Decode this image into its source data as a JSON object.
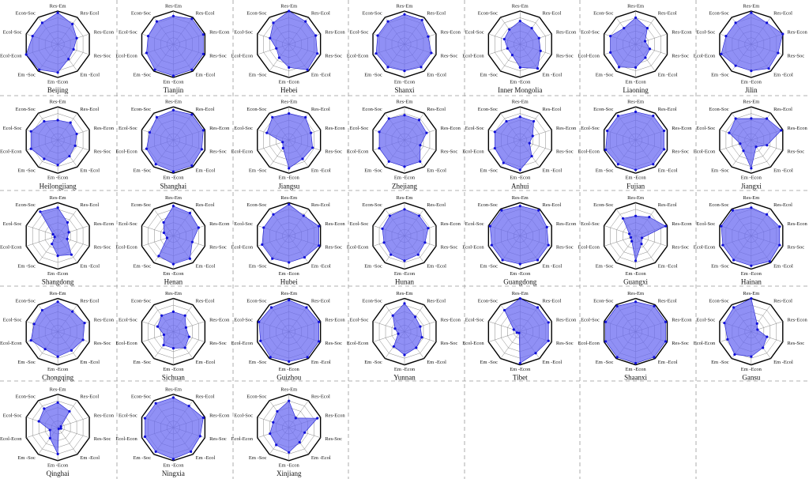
{
  "chart_data": [
    {
      "type": "radar",
      "title": "Beijing",
      "categories": [
        "Res-Em",
        "Res-Ecol",
        "Res-Econ",
        "Res-Soc",
        "Em -Ecol",
        "Em -Econ",
        "Em -Soc",
        "Ecol-Econ",
        "Ecol-Soc",
        "Econ-Soc"
      ],
      "values": [
        0.95,
        0.75,
        0.6,
        0.5,
        0.55,
        0.85,
        0.95,
        1.0,
        0.8,
        0.8
      ],
      "color": "#6b6bf2",
      "ylim": [
        0,
        1
      ],
      "yticks": [
        0.2,
        0.4,
        0.6,
        0.8,
        1.0
      ]
    },
    {
      "type": "radar",
      "title": "Tianjin",
      "categories": [
        "Res-Em",
        "Res-Ecol",
        "Res-Econ",
        "Res-Soc",
        "Em -Ecol",
        "Em -Econ",
        "Em -Soc",
        "Ecol-Econ",
        "Ecol-Soc",
        "Econ-Soc"
      ],
      "values": [
        0.85,
        0.95,
        0.95,
        0.95,
        0.95,
        0.95,
        0.95,
        0.85,
        0.8,
        0.85
      ],
      "color": "#6b6bf2",
      "ylim": [
        0,
        1
      ],
      "yticks": [
        0.2,
        0.4,
        0.6,
        0.8,
        1.0
      ]
    },
    {
      "type": "radar",
      "title": "Hebei",
      "categories": [
        "Res-Em",
        "Res-Ecol",
        "Res-Econ",
        "Res-Soc",
        "Em -Ecol",
        "Em -Econ",
        "Em -Soc",
        "Ecol-Econ",
        "Ecol-Soc",
        "Econ-Soc"
      ],
      "values": [
        1.0,
        0.85,
        0.85,
        0.9,
        0.95,
        0.7,
        0.5,
        0.4,
        0.6,
        0.8
      ],
      "color": "#6b6bf2",
      "ylim": [
        0,
        1
      ],
      "yticks": [
        0.2,
        0.4,
        0.6,
        0.8,
        1.0
      ]
    },
    {
      "type": "radar",
      "title": "Shanxi",
      "categories": [
        "Res-Em",
        "Res-Ecol",
        "Res-Econ",
        "Res-Soc",
        "Em -Ecol",
        "Em -Econ",
        "Em -Soc",
        "Ecol-Econ",
        "Ecol-Soc",
        "Econ-Soc"
      ],
      "values": [
        0.9,
        0.9,
        0.75,
        0.85,
        0.85,
        0.8,
        0.85,
        0.9,
        0.85,
        0.85
      ],
      "color": "#6b6bf2",
      "ylim": [
        0,
        1
      ],
      "yticks": [
        0.2,
        0.4,
        0.6,
        0.8,
        1.0
      ]
    },
    {
      "type": "radar",
      "title": "Inner Mongolia",
      "categories": [
        "Res-Em",
        "Res-Ecol",
        "Res-Econ",
        "Res-Soc",
        "Em -Ecol",
        "Em -Econ",
        "Em -Soc",
        "Ecol-Econ",
        "Ecol-Soc",
        "Econ-Soc"
      ],
      "values": [
        0.7,
        0.6,
        0.6,
        0.65,
        0.9,
        0.7,
        0.4,
        0.4,
        0.5,
        0.55
      ],
      "color": "#6b6bf2",
      "ylim": [
        0,
        1
      ],
      "yticks": [
        0.2,
        0.4,
        0.6,
        0.8,
        1.0
      ]
    },
    {
      "type": "radar",
      "title": "Liaoning",
      "categories": [
        "Res-Em",
        "Res-Ecol",
        "Res-Econ",
        "Res-Soc",
        "Em -Ecol",
        "Em -Econ",
        "Em -Soc",
        "Ecol-Econ",
        "Ecol-Soc",
        "Econ-Soc"
      ],
      "values": [
        0.8,
        0.6,
        0.3,
        0.45,
        0.5,
        0.7,
        0.85,
        0.8,
        0.8,
        0.6
      ],
      "color": "#6b6bf2",
      "ylim": [
        0,
        1
      ],
      "yticks": [
        0.2,
        0.4,
        0.6,
        0.8,
        1.0
      ]
    },
    {
      "type": "radar",
      "title": "Jilin",
      "categories": [
        "Res-Em",
        "Res-Ecol",
        "Res-Econ",
        "Res-Soc",
        "Em -Ecol",
        "Em -Econ",
        "Em -Soc",
        "Ecol-Econ",
        "Ecol-Soc",
        "Econ-Soc"
      ],
      "values": [
        0.95,
        0.8,
        1.0,
        0.85,
        0.9,
        0.8,
        0.8,
        0.95,
        0.8,
        0.8
      ],
      "color": "#6b6bf2",
      "ylim": [
        0,
        1
      ],
      "yticks": [
        0.2,
        0.4,
        0.6,
        0.8,
        1.0
      ]
    },
    {
      "type": "radar",
      "title": "Heilongjiang",
      "categories": [
        "Res-Em",
        "Res-Ecol",
        "Res-Econ",
        "Res-Soc",
        "Em -Ecol",
        "Em -Econ",
        "Em -Soc",
        "Ecol-Econ",
        "Ecol-Soc",
        "Econ-Soc"
      ],
      "values": [
        0.6,
        0.65,
        0.6,
        0.55,
        0.6,
        0.75,
        0.7,
        0.85,
        0.85,
        0.7
      ],
      "color": "#6b6bf2",
      "ylim": [
        0,
        1
      ],
      "yticks": [
        0.2,
        0.4,
        0.6,
        0.8,
        1.0
      ]
    },
    {
      "type": "radar",
      "title": "Shanghai",
      "categories": [
        "Res-Em",
        "Res-Ecol",
        "Res-Econ",
        "Res-Soc",
        "Em -Ecol",
        "Em -Econ",
        "Em -Soc",
        "Ecol-Econ",
        "Ecol-Soc",
        "Econ-Soc"
      ],
      "values": [
        0.9,
        0.95,
        0.95,
        0.9,
        0.95,
        0.95,
        0.9,
        0.85,
        0.75,
        0.85
      ],
      "color": "#6b6bf2",
      "ylim": [
        0,
        1
      ],
      "yticks": [
        0.2,
        0.4,
        0.6,
        0.8,
        1.0
      ]
    },
    {
      "type": "radar",
      "title": "Jiangsu",
      "categories": [
        "Res-Em",
        "Res-Ecol",
        "Res-Econ",
        "Res-Soc",
        "Em -Ecol",
        "Em -Econ",
        "Em -Soc",
        "Ecol-Econ",
        "Ecol-Soc",
        "Econ-Soc"
      ],
      "values": [
        0.8,
        0.85,
        0.7,
        0.75,
        0.7,
        0.85,
        0.3,
        0.2,
        0.7,
        0.85
      ],
      "color": "#6b6bf2",
      "ylim": [
        0,
        1
      ],
      "yticks": [
        0.2,
        0.4,
        0.6,
        0.8,
        1.0
      ]
    },
    {
      "type": "radar",
      "title": "Zhejiang",
      "categories": [
        "Res-Em",
        "Res-Ecol",
        "Res-Econ",
        "Res-Soc",
        "Em -Ecol",
        "Em -Econ",
        "Em -Soc",
        "Ecol-Econ",
        "Ecol-Soc",
        "Econ-Soc"
      ],
      "values": [
        0.75,
        0.75,
        0.7,
        0.5,
        0.8,
        0.8,
        0.8,
        0.8,
        0.8,
        0.8
      ],
      "color": "#6b6bf2",
      "ylim": [
        0,
        1
      ],
      "yticks": [
        0.2,
        0.4,
        0.6,
        0.8,
        1.0
      ]
    },
    {
      "type": "radar",
      "title": "Anhui",
      "categories": [
        "Res-Em",
        "Res-Ecol",
        "Res-Econ",
        "Res-Soc",
        "Em -Ecol",
        "Em -Econ",
        "Em -Soc",
        "Ecol-Econ",
        "Ecol-Soc",
        "Econ-Soc"
      ],
      "values": [
        0.7,
        0.7,
        0.4,
        0.3,
        0.6,
        0.9,
        0.85,
        0.8,
        0.8,
        0.7
      ],
      "color": "#6b6bf2",
      "ylim": [
        0,
        1
      ],
      "yticks": [
        0.2,
        0.4,
        0.6,
        0.8,
        1.0
      ]
    },
    {
      "type": "radar",
      "title": "Fujian",
      "categories": [
        "Res-Em",
        "Res-Ecol",
        "Res-Econ",
        "Res-Soc",
        "Em -Ecol",
        "Em -Econ",
        "Em -Soc",
        "Ecol-Econ",
        "Ecol-Soc",
        "Econ-Soc"
      ],
      "values": [
        0.85,
        0.9,
        0.9,
        0.9,
        0.9,
        0.9,
        0.9,
        0.95,
        0.9,
        0.9
      ],
      "color": "#6b6bf2",
      "ylim": [
        0,
        1
      ],
      "yticks": [
        0.2,
        0.4,
        0.6,
        0.8,
        1.0
      ]
    },
    {
      "type": "radar",
      "title": "Jiangxi",
      "categories": [
        "Res-Em",
        "Res-Ecol",
        "Res-Econ",
        "Res-Soc",
        "Em -Ecol",
        "Em -Econ",
        "Em -Soc",
        "Ecol-Econ",
        "Ecol-Soc",
        "Econ-Soc"
      ],
      "values": [
        0.65,
        0.8,
        0.95,
        0.5,
        0.25,
        0.85,
        0.4,
        0.35,
        0.7,
        0.8
      ],
      "color": "#6b6bf2",
      "ylim": [
        0,
        1
      ],
      "yticks": [
        0.2,
        0.4,
        0.6,
        0.8,
        1.0
      ]
    },
    {
      "type": "radar",
      "title": "Shangdong",
      "categories": [
        "Res-Em",
        "Res-Ecol",
        "Res-Econ",
        "Res-Soc",
        "Em -Ecol",
        "Em -Econ",
        "Em -Soc",
        "Ecol-Econ",
        "Ecol-Soc",
        "Econ-Soc"
      ],
      "values": [
        0.85,
        0.5,
        0.35,
        0.3,
        0.7,
        0.6,
        0.3,
        0.1,
        0.15,
        0.9
      ],
      "color": "#6b6bf2",
      "ylim": [
        0,
        1
      ],
      "yticks": [
        0.2,
        0.4,
        0.6,
        0.8,
        1.0
      ]
    },
    {
      "type": "radar",
      "title": "Henan",
      "categories": [
        "Res-Em",
        "Res-Ecol",
        "Res-Econ",
        "Res-Soc",
        "Em -Ecol",
        "Em -Econ",
        "Em -Soc",
        "Ecol-Econ",
        "Ecol-Soc",
        "Econ-Soc"
      ],
      "values": [
        0.9,
        0.85,
        0.8,
        0.6,
        0.85,
        0.85,
        0.75,
        0.2,
        0.3,
        0.5
      ],
      "color": "#6b6bf2",
      "ylim": [
        0,
        1
      ],
      "yticks": [
        0.2,
        0.4,
        0.6,
        0.8,
        1.0
      ]
    },
    {
      "type": "radar",
      "title": "Hubei",
      "categories": [
        "Res-Em",
        "Res-Ecol",
        "Res-Econ",
        "Res-Soc",
        "Em -Ecol",
        "Em -Econ",
        "Em -Soc",
        "Ecol-Econ",
        "Ecol-Soc",
        "Econ-Soc"
      ],
      "values": [
        0.95,
        0.75,
        0.95,
        0.95,
        0.8,
        0.8,
        0.85,
        0.85,
        0.8,
        0.8
      ],
      "color": "#6b6bf2",
      "ylim": [
        0,
        1
      ],
      "yticks": [
        0.2,
        0.4,
        0.6,
        0.8,
        1.0
      ]
    },
    {
      "type": "radar",
      "title": "Hunan",
      "categories": [
        "Res-Em",
        "Res-Ecol",
        "Res-Econ",
        "Res-Soc",
        "Em -Ecol",
        "Em -Econ",
        "Em -Soc",
        "Ecol-Econ",
        "Ecol-Soc",
        "Econ-Soc"
      ],
      "values": [
        0.8,
        0.75,
        0.75,
        0.65,
        0.7,
        0.75,
        0.7,
        0.65,
        0.7,
        0.75
      ],
      "color": "#6b6bf2",
      "ylim": [
        0,
        1
      ],
      "yticks": [
        0.2,
        0.4,
        0.6,
        0.8,
        1.0
      ]
    },
    {
      "type": "radar",
      "title": "Guangdong",
      "categories": [
        "Res-Em",
        "Res-Ecol",
        "Res-Econ",
        "Res-Soc",
        "Em -Ecol",
        "Em -Econ",
        "Em -Soc",
        "Ecol-Econ",
        "Ecol-Soc",
        "Econ-Soc"
      ],
      "values": [
        0.9,
        0.95,
        0.85,
        0.9,
        0.9,
        0.85,
        0.9,
        0.9,
        0.95,
        0.95
      ],
      "color": "#6b6bf2",
      "ylim": [
        0,
        1
      ],
      "yticks": [
        0.2,
        0.4,
        0.6,
        0.8,
        1.0
      ]
    },
    {
      "type": "radar",
      "title": "Guangxi",
      "categories": [
        "Res-Em",
        "Res-Ecol",
        "Res-Econ",
        "Res-Soc",
        "Em -Ecol",
        "Em -Econ",
        "Em -Soc",
        "Ecol-Econ",
        "Ecol-Soc",
        "Econ-Soc"
      ],
      "values": [
        0.6,
        0.7,
        0.95,
        0.2,
        0.3,
        0.75,
        0.2,
        0.15,
        0.2,
        0.65
      ],
      "color": "#6b6bf2",
      "ylim": [
        0,
        1
      ],
      "yticks": [
        0.2,
        0.4,
        0.6,
        0.8,
        1.0
      ]
    },
    {
      "type": "radar",
      "title": "Hainan",
      "categories": [
        "Res-Em",
        "Res-Ecol",
        "Res-Econ",
        "Res-Soc",
        "Em -Ecol",
        "Em -Econ",
        "Em -Soc",
        "Ecol-Econ",
        "Ecol-Soc",
        "Econ-Soc"
      ],
      "values": [
        0.85,
        0.8,
        0.9,
        0.9,
        0.95,
        0.9,
        0.9,
        0.9,
        0.95,
        0.95
      ],
      "color": "#6b6bf2",
      "ylim": [
        0,
        1
      ],
      "yticks": [
        0.2,
        0.4,
        0.6,
        0.8,
        1.0
      ]
    },
    {
      "type": "radar",
      "title": "Chongqing",
      "categories": [
        "Res-Em",
        "Res-Ecol",
        "Res-Econ",
        "Res-Soc",
        "Em -Ecol",
        "Em -Econ",
        "Em -Soc",
        "Ecol-Econ",
        "Ecol-Soc",
        "Econ-Soc"
      ],
      "values": [
        0.9,
        0.75,
        0.85,
        0.8,
        0.7,
        0.75,
        0.65,
        0.85,
        0.75,
        0.8
      ],
      "color": "#6b6bf2",
      "ylim": [
        0,
        1
      ],
      "yticks": [
        0.2,
        0.4,
        0.6,
        0.8,
        1.0
      ]
    },
    {
      "type": "radar",
      "title": "Sichuan",
      "categories": [
        "Res-Em",
        "Res-Ecol",
        "Res-Econ",
        "Res-Soc",
        "Em -Ecol",
        "Em -Econ",
        "Em -Soc",
        "Ecol-Econ",
        "Ecol-Soc",
        "Econ-Soc"
      ],
      "values": [
        0.6,
        0.6,
        0.4,
        0.5,
        0.6,
        0.5,
        0.5,
        0.3,
        0.5,
        0.6
      ],
      "color": "#6b6bf2",
      "ylim": [
        0,
        1
      ],
      "yticks": [
        0.2,
        0.4,
        0.6,
        0.8,
        1.0
      ]
    },
    {
      "type": "radar",
      "title": "Guizhou",
      "categories": [
        "Res-Em",
        "Res-Ecol",
        "Res-Econ",
        "Res-Soc",
        "Em -Ecol",
        "Em -Econ",
        "Em -Soc",
        "Ecol-Econ",
        "Ecol-Soc",
        "Econ-Soc"
      ],
      "values": [
        0.95,
        0.9,
        0.95,
        0.95,
        0.95,
        0.9,
        0.95,
        0.9,
        0.95,
        0.9
      ],
      "color": "#6b6bf2",
      "ylim": [
        0,
        1
      ],
      "yticks": [
        0.2,
        0.4,
        0.6,
        0.8,
        1.0
      ]
    },
    {
      "type": "radar",
      "title": "Yunnan",
      "categories": [
        "Res-Em",
        "Res-Ecol",
        "Res-Econ",
        "Res-Soc",
        "Em -Ecol",
        "Em -Econ",
        "Em -Soc",
        "Ecol-Econ",
        "Ecol-Soc",
        "Econ-Soc"
      ],
      "values": [
        0.85,
        0.55,
        0.5,
        0.55,
        0.6,
        0.7,
        0.55,
        0.2,
        0.3,
        0.6
      ],
      "color": "#6b6bf2",
      "ylim": [
        0,
        1
      ],
      "yticks": [
        0.2,
        0.4,
        0.6,
        0.8,
        1.0
      ]
    },
    {
      "type": "radar",
      "title": "Tibet",
      "categories": [
        "Res-Em",
        "Res-Ecol",
        "Res-Econ",
        "Res-Soc",
        "Em -Ecol",
        "Em -Econ",
        "Em -Soc",
        "Ecol-Econ",
        "Ecol-Soc",
        "Econ-Soc"
      ],
      "values": [
        1.0,
        0.9,
        0.9,
        0.9,
        0.8,
        0.95,
        0.05,
        0.1,
        0.2,
        0.8
      ],
      "color": "#6b6bf2",
      "ylim": [
        0,
        1
      ],
      "yticks": [
        0.2,
        0.4,
        0.6,
        0.8,
        1.0
      ]
    },
    {
      "type": "radar",
      "title": "Shaanxi",
      "categories": [
        "Res-Em",
        "Res-Ecol",
        "Res-Econ",
        "Res-Soc",
        "Em -Ecol",
        "Em -Econ",
        "Em -Soc",
        "Ecol-Econ",
        "Ecol-Soc",
        "Econ-Soc"
      ],
      "values": [
        0.9,
        0.95,
        0.95,
        0.95,
        0.95,
        0.95,
        0.95,
        0.95,
        0.95,
        0.95
      ],
      "color": "#6b6bf2",
      "ylim": [
        0,
        1
      ],
      "yticks": [
        0.2,
        0.4,
        0.6,
        0.8,
        1.0
      ]
    },
    {
      "type": "radar",
      "title": "Gansu",
      "categories": [
        "Res-Em",
        "Res-Ecol",
        "Res-Econ",
        "Res-Soc",
        "Em -Ecol",
        "Em -Econ",
        "Em -Soc",
        "Ecol-Econ",
        "Ecol-Soc",
        "Econ-Soc"
      ],
      "values": [
        1.0,
        0.3,
        0.2,
        0.5,
        0.6,
        0.75,
        0.85,
        0.75,
        0.85,
        0.9
      ],
      "color": "#6b6bf2",
      "ylim": [
        0,
        1
      ],
      "yticks": [
        0.2,
        0.4,
        0.6,
        0.8,
        1.0
      ]
    },
    {
      "type": "radar",
      "title": "Qinghai",
      "categories": [
        "Res-Em",
        "Res-Ecol",
        "Res-Econ",
        "Res-Soc",
        "Em -Ecol",
        "Em -Econ",
        "Em -Soc",
        "Ecol-Econ",
        "Ecol-Soc",
        "Econ-Soc"
      ],
      "values": [
        0.75,
        0.6,
        0.1,
        0.1,
        0.05,
        0.8,
        0.4,
        0.25,
        0.6,
        0.7
      ],
      "color": "#6b6bf2",
      "ylim": [
        0,
        1
      ],
      "yticks": [
        0.2,
        0.4,
        0.6,
        0.8,
        1.0
      ]
    },
    {
      "type": "radar",
      "title": "Ningxia",
      "categories": [
        "Res-Em",
        "Res-Ecol",
        "Res-Econ",
        "Res-Soc",
        "Em -Ecol",
        "Em -Econ",
        "Em -Soc",
        "Ecol-Econ",
        "Ecol-Soc",
        "Econ-Soc"
      ],
      "values": [
        0.9,
        0.8,
        0.95,
        0.85,
        0.9,
        0.95,
        0.9,
        0.9,
        0.9,
        0.9
      ],
      "color": "#6b6bf2",
      "ylim": [
        0,
        1
      ],
      "yticks": [
        0.2,
        0.4,
        0.6,
        0.8,
        1.0
      ]
    },
    {
      "type": "radar",
      "title": "Xinjiang",
      "categories": [
        "Res-Em",
        "Res-Ecol",
        "Res-Econ",
        "Res-Soc",
        "Em -Ecol",
        "Em -Econ",
        "Em -Soc",
        "Ecol-Econ",
        "Ecol-Soc",
        "Econ-Soc"
      ],
      "values": [
        0.8,
        0.35,
        0.9,
        0.5,
        0.55,
        0.75,
        0.65,
        0.6,
        0.5,
        0.6
      ],
      "color": "#6b6bf2",
      "ylim": [
        0,
        1
      ],
      "yticks": [
        0.2,
        0.4,
        0.6,
        0.8,
        1.0
      ]
    }
  ]
}
